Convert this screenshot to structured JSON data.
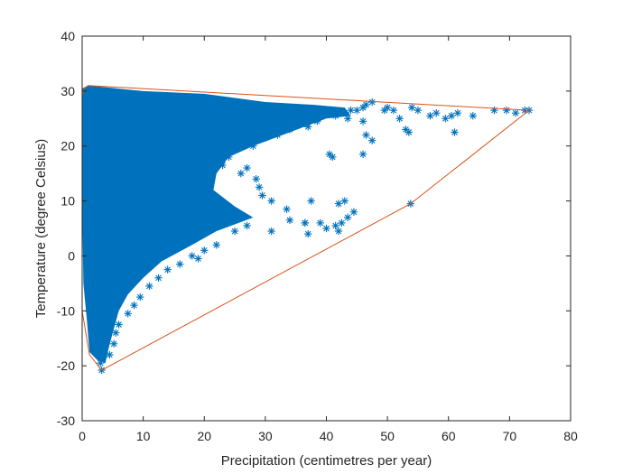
{
  "chart_data": {
    "type": "scatter",
    "xlabel": "Precipitation (centimetres per year)",
    "ylabel": "Temperature (degree Celsius)",
    "xlim": [
      0,
      80
    ],
    "ylim": [
      -30,
      40
    ],
    "xticks": [
      0,
      10,
      20,
      30,
      40,
      50,
      60,
      70,
      80
    ],
    "yticks": [
      -30,
      -20,
      -10,
      0,
      10,
      20,
      30,
      40
    ],
    "grid": false,
    "legend": "none",
    "box": true,
    "colors": {
      "points": "#0072BD",
      "hull": "#D95319",
      "axes": "#262626"
    },
    "series": [
      {
        "kind": "scatter",
        "marker": "asterisk",
        "density_region": {
          "description_of_extent": "dense cloud of observations",
          "x_range": [
            0,
            73
          ],
          "y_range": [
            -21,
            31
          ]
        },
        "points": [
          [
            3.2,
            -20.8
          ],
          [
            3.0,
            -19.5
          ],
          [
            4.5,
            -18.0
          ],
          [
            5.2,
            -16.0
          ],
          [
            5.5,
            -14.0
          ],
          [
            6.0,
            -12.5
          ],
          [
            7.5,
            -10.5
          ],
          [
            8.5,
            -9.0
          ],
          [
            9.5,
            -7.5
          ],
          [
            11.0,
            -5.5
          ],
          [
            12.5,
            -4.0
          ],
          [
            14.0,
            -2.5
          ],
          [
            16.0,
            -1.5
          ],
          [
            18.0,
            0.0
          ],
          [
            20.0,
            1.0
          ],
          [
            22.0,
            2.0
          ],
          [
            19.0,
            -0.5
          ],
          [
            25.0,
            4.5
          ],
          [
            27.0,
            5.5
          ],
          [
            31.0,
            4.5
          ],
          [
            34.0,
            6.5
          ],
          [
            36.5,
            6.0
          ],
          [
            39.0,
            6.0
          ],
          [
            40.0,
            5.0
          ],
          [
            41.5,
            5.5
          ],
          [
            42.0,
            4.5
          ],
          [
            42.5,
            6.0
          ],
          [
            37.0,
            4.0
          ],
          [
            43.5,
            7.0
          ],
          [
            44.5,
            8.0
          ],
          [
            42.0,
            9.5
          ],
          [
            43.0,
            10.0
          ],
          [
            33.5,
            8.5
          ],
          [
            31.0,
            10.0
          ],
          [
            29.5,
            11.0
          ],
          [
            29.0,
            12.5
          ],
          [
            28.5,
            14.0
          ],
          [
            26.0,
            15.0
          ],
          [
            27.0,
            16.0
          ],
          [
            23.0,
            16.5
          ],
          [
            24.0,
            18.0
          ],
          [
            22.5,
            20.0
          ],
          [
            24.5,
            21.0
          ],
          [
            28.0,
            20.0
          ],
          [
            30.0,
            21.5
          ],
          [
            32.0,
            22.0
          ],
          [
            34.0,
            23.0
          ],
          [
            37.0,
            23.5
          ],
          [
            38.5,
            24.5
          ],
          [
            40.5,
            18.5
          ],
          [
            41.0,
            18.0
          ],
          [
            41.5,
            25.5
          ],
          [
            43.5,
            25.0
          ],
          [
            45.0,
            26.5
          ],
          [
            46.0,
            24.5
          ],
          [
            46.5,
            22.0
          ],
          [
            46.0,
            18.5
          ],
          [
            47.5,
            21.0
          ],
          [
            46.5,
            27.5
          ],
          [
            47.5,
            28.0
          ],
          [
            49.5,
            26.5
          ],
          [
            50.0,
            27.0
          ],
          [
            51.0,
            26.5
          ],
          [
            52.0,
            25.0
          ],
          [
            53.0,
            23.0
          ],
          [
            54.0,
            27.0
          ],
          [
            55.0,
            26.5
          ],
          [
            53.5,
            22.5
          ],
          [
            57.0,
            25.5
          ],
          [
            58.0,
            26.0
          ],
          [
            59.5,
            25.0
          ],
          [
            60.5,
            25.5
          ],
          [
            61.5,
            26.0
          ],
          [
            61.0,
            22.5
          ],
          [
            64.0,
            25.5
          ],
          [
            67.5,
            26.5
          ],
          [
            69.5,
            26.5
          ],
          [
            71.0,
            26.0
          ],
          [
            72.5,
            26.5
          ],
          [
            73.2,
            26.5
          ],
          [
            53.8,
            9.5
          ],
          [
            37.5,
            10.0
          ],
          [
            36.5,
            6.0
          ],
          [
            46.0,
            27.0
          ],
          [
            44.0,
            26.5
          ]
        ]
      }
    ],
    "hull": {
      "kind": "line",
      "points": [
        [
          3.2,
          -20.8
        ],
        [
          53.8,
          9.5
        ],
        [
          73.2,
          26.5
        ],
        [
          1.0,
          31.0
        ],
        [
          0.3,
          30.5
        ],
        [
          0.0,
          29.0
        ],
        [
          0.0,
          -10.0
        ],
        [
          1.2,
          -18.0
        ],
        [
          3.2,
          -20.8
        ]
      ]
    }
  }
}
